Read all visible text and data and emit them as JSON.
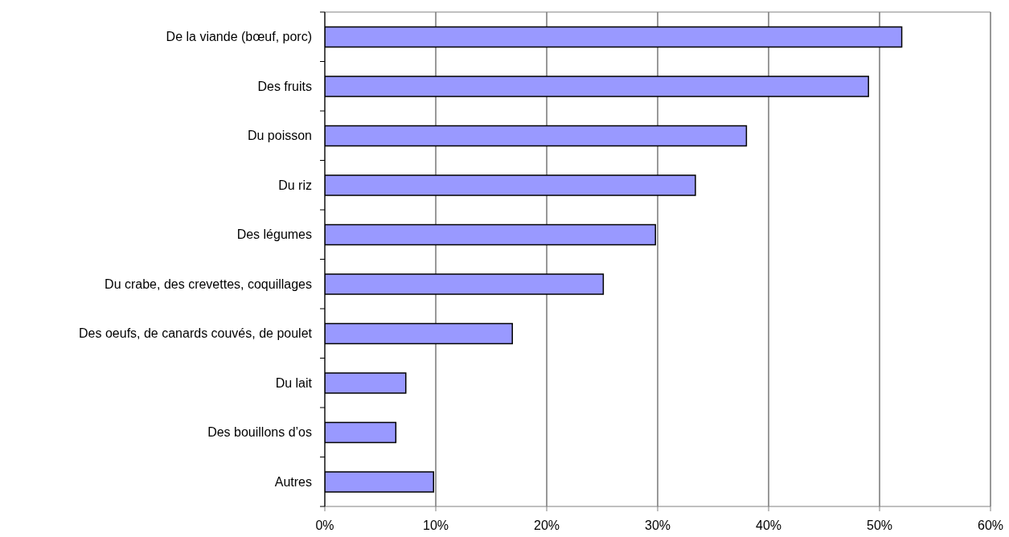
{
  "chart_data": {
    "type": "bar",
    "orientation": "horizontal",
    "categories": [
      "De la viande (bœuf, porc)",
      "Des fruits",
      "Du poisson",
      "Du riz",
      "Des légumes",
      "Du crabe, des crevettes, coquillages",
      "Des oeufs, de canards couvés, de poulet",
      "Du lait",
      "Des bouillons d’os",
      "Autres"
    ],
    "values": [
      52,
      49,
      38,
      33.4,
      29.8,
      25.1,
      16.9,
      7.3,
      6.4,
      9.8
    ],
    "color": "#9999ff",
    "xlim": [
      0,
      60
    ],
    "xticks": [
      {
        "value": 0,
        "label": "0%"
      },
      {
        "value": 10,
        "label": "10%"
      },
      {
        "value": 20,
        "label": "20%"
      },
      {
        "value": 30,
        "label": "30%"
      },
      {
        "value": 40,
        "label": "40%"
      },
      {
        "value": 50,
        "label": "50%"
      },
      {
        "value": 60,
        "label": "60%"
      }
    ],
    "grid": "x"
  }
}
